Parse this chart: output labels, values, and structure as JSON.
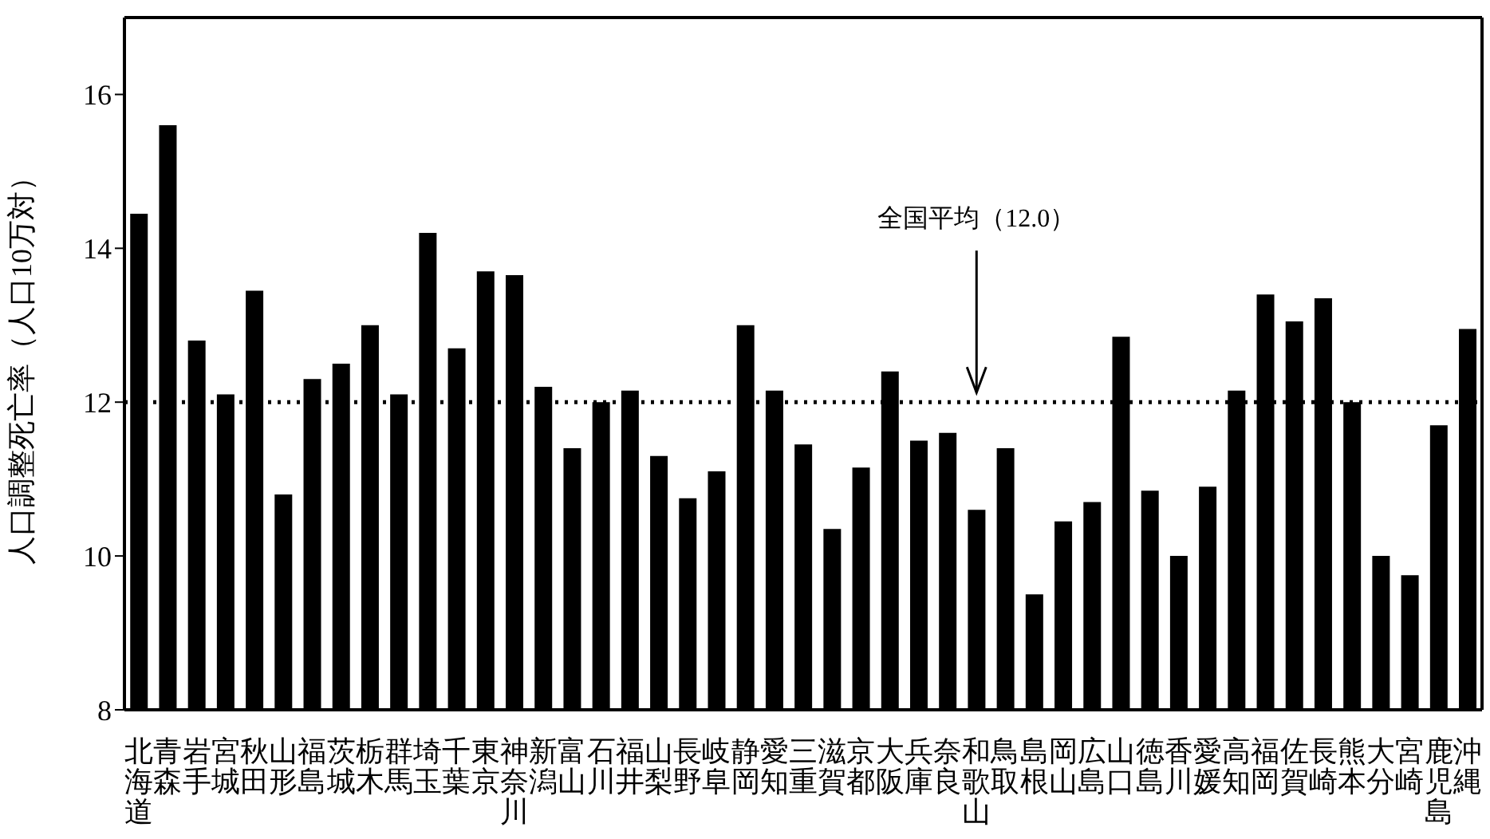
{
  "chart_data": {
    "type": "bar",
    "ylabel": "人口調整死亡率（人口10万対）",
    "categories": [
      "北海道",
      "青森",
      "岩手",
      "宮城",
      "秋田",
      "山形",
      "福島",
      "茨城",
      "栃木",
      "群馬",
      "埼玉",
      "千葉",
      "東京",
      "神奈川",
      "新潟",
      "富山",
      "石川",
      "福井",
      "山梨",
      "長野",
      "岐阜",
      "静岡",
      "愛知",
      "三重",
      "滋賀",
      "京都",
      "大阪",
      "兵庫",
      "奈良",
      "和歌山",
      "鳥取",
      "島根",
      "岡山",
      "広島",
      "山口",
      "徳島",
      "香川",
      "愛媛",
      "高知",
      "福岡",
      "佐賀",
      "長崎",
      "熊本",
      "大分",
      "宮崎",
      "鹿児島",
      "沖縄"
    ],
    "values": [
      14.45,
      15.6,
      12.8,
      12.1,
      13.45,
      10.8,
      12.3,
      12.5,
      13.0,
      12.1,
      14.2,
      12.7,
      13.7,
      13.65,
      12.2,
      11.4,
      12.0,
      12.15,
      11.3,
      10.75,
      11.1,
      13.0,
      12.15,
      11.45,
      10.35,
      11.15,
      12.4,
      11.5,
      11.6,
      10.6,
      11.4,
      9.5,
      10.45,
      10.7,
      12.85,
      10.85,
      10.0,
      10.9,
      12.15,
      13.4,
      13.05,
      13.35,
      12.0,
      10.0,
      9.75,
      11.7,
      12.95
    ],
    "color": "#000000",
    "ylim": [
      8,
      17
    ],
    "yticks": [
      8,
      10,
      12,
      14,
      16
    ],
    "ref_lines": [
      {
        "axis": "y",
        "value": 12.0,
        "color": "#000000",
        "line_style": "dotted"
      }
    ],
    "annotations": [
      "全国平均（12.0）"
    ]
  }
}
